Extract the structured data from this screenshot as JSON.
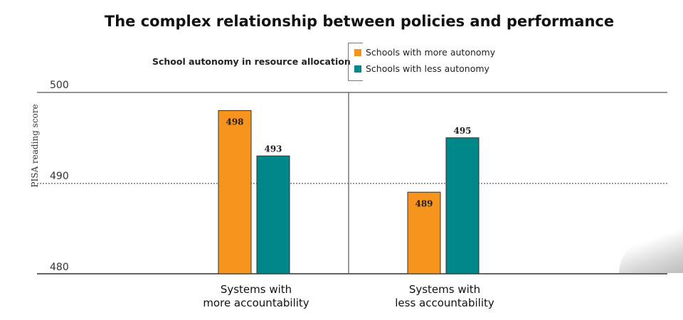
{
  "chart_data": {
    "type": "bar",
    "title": "The complex relationship between policies and performance",
    "legend_title": "School autonomy in resource allocation",
    "ylabel": "PISA reading score",
    "ylim": [
      480,
      500
    ],
    "yticks": [
      "480",
      "490",
      "500"
    ],
    "categories": [
      {
        "line1": "Systems with",
        "line2": "more accountability"
      },
      {
        "line1": "Systems with",
        "line2": "less accountability"
      }
    ],
    "series": [
      {
        "name": "Schools with more autonomy",
        "color": "#f7941d",
        "values": [
          498,
          489
        ]
      },
      {
        "name": "Schools with less autonomy",
        "color": "#00878a",
        "values": [
          493,
          495
        ]
      }
    ]
  }
}
